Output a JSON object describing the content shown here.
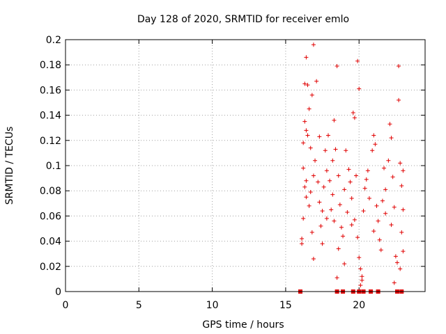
{
  "chart_data": {
    "type": "scatter",
    "title": "Day 128 of 2020, SRMTID for receiver emlo",
    "xlabel": "GPS time / hours",
    "ylabel": "SRMTID / TECUs",
    "xlim": [
      0,
      24.5
    ],
    "ylim": [
      0,
      0.2
    ],
    "x_ticks": [
      0,
      5,
      10,
      15,
      20
    ],
    "x_tick_labels": [
      "0",
      "5",
      "10",
      "15",
      "20"
    ],
    "y_ticks": [
      0,
      0.02,
      0.04,
      0.06,
      0.08,
      0.1,
      0.12,
      0.14,
      0.16,
      0.18,
      0.2
    ],
    "y_tick_labels": [
      "0",
      "0.02",
      "0.04",
      "0.06",
      "0.08",
      "0.1",
      "0.12",
      "0.14",
      "0.16",
      "0.18",
      "0.2"
    ],
    "grid": true,
    "marker": "plus",
    "series_color": "#e00000",
    "zero_points_x": [
      16.0,
      18.5,
      18.9,
      19.6,
      20.0,
      20.3,
      20.8,
      21.3,
      22.6,
      22.9
    ],
    "series": [
      {
        "name": "SRMTID",
        "points": [
          [
            16.2,
            0.098
          ],
          [
            16.3,
            0.083
          ],
          [
            16.4,
            0.075
          ],
          [
            16.3,
            0.165
          ],
          [
            16.4,
            0.186
          ],
          [
            16.5,
            0.164
          ],
          [
            16.9,
            0.196
          ],
          [
            16.6,
            0.145
          ],
          [
            16.3,
            0.135
          ],
          [
            16.4,
            0.128
          ],
          [
            16.2,
            0.118
          ],
          [
            16.5,
            0.124
          ],
          [
            16.8,
            0.156
          ],
          [
            17.1,
            0.167
          ],
          [
            16.2,
            0.058
          ],
          [
            16.1,
            0.042
          ],
          [
            16.1,
            0.038
          ],
          [
            16.4,
            0.088
          ],
          [
            16.6,
            0.068
          ],
          [
            16.7,
            0.079
          ],
          [
            16.9,
            0.092
          ],
          [
            17.0,
            0.104
          ],
          [
            17.2,
            0.087
          ],
          [
            17.3,
            0.071
          ],
          [
            17.5,
            0.064
          ],
          [
            17.4,
            0.052
          ],
          [
            16.8,
            0.047
          ],
          [
            17.6,
            0.083
          ],
          [
            17.8,
            0.096
          ],
          [
            17.7,
            0.112
          ],
          [
            17.9,
            0.124
          ],
          [
            18.0,
            0.088
          ],
          [
            18.2,
            0.077
          ],
          [
            18.1,
            0.065
          ],
          [
            18.3,
            0.056
          ],
          [
            18.4,
            0.113
          ],
          [
            18.5,
            0.179
          ],
          [
            18.3,
            0.136
          ],
          [
            18.6,
            0.092
          ],
          [
            18.7,
            0.069
          ],
          [
            18.8,
            0.051
          ],
          [
            18.9,
            0.044
          ],
          [
            18.6,
            0.034
          ],
          [
            19.0,
            0.081
          ],
          [
            19.2,
            0.063
          ],
          [
            19.3,
            0.097
          ],
          [
            19.1,
            0.112
          ],
          [
            19.5,
            0.074
          ],
          [
            19.6,
            0.142
          ],
          [
            19.7,
            0.138
          ],
          [
            19.8,
            0.092
          ],
          [
            19.9,
            0.183
          ],
          [
            20.0,
            0.161
          ],
          [
            19.7,
            0.057
          ],
          [
            19.9,
            0.043
          ],
          [
            20.0,
            0.027
          ],
          [
            20.1,
            0.018
          ],
          [
            20.2,
            0.012
          ],
          [
            20.1,
            0.005
          ],
          [
            20.2,
            0.009
          ],
          [
            20.3,
            0.064
          ],
          [
            20.4,
            0.082
          ],
          [
            20.6,
            0.096
          ],
          [
            20.7,
            0.074
          ],
          [
            20.9,
            0.112
          ],
          [
            21.0,
            0.124
          ],
          [
            21.1,
            0.117
          ],
          [
            21.2,
            0.068
          ],
          [
            21.0,
            0.048
          ],
          [
            21.3,
            0.056
          ],
          [
            21.4,
            0.041
          ],
          [
            21.5,
            0.033
          ],
          [
            21.6,
            0.072
          ],
          [
            21.8,
            0.081
          ],
          [
            22.0,
            0.104
          ],
          [
            22.1,
            0.133
          ],
          [
            22.2,
            0.122
          ],
          [
            22.3,
            0.091
          ],
          [
            22.4,
            0.067
          ],
          [
            22.2,
            0.053
          ],
          [
            22.5,
            0.028
          ],
          [
            22.6,
            0.023
          ],
          [
            22.4,
            0.007
          ],
          [
            22.7,
            0.179
          ],
          [
            22.7,
            0.152
          ],
          [
            22.8,
            0.102
          ],
          [
            22.9,
            0.084
          ],
          [
            23.0,
            0.065
          ],
          [
            22.9,
            0.047
          ],
          [
            23.0,
            0.032
          ],
          [
            22.8,
            0.018
          ],
          [
            23.0,
            0.096
          ],
          [
            16.7,
            0.114
          ],
          [
            17.3,
            0.123
          ],
          [
            18.2,
            0.104
          ],
          [
            19.4,
            0.087
          ],
          [
            20.5,
            0.089
          ],
          [
            21.7,
            0.098
          ],
          [
            16.9,
            0.026
          ],
          [
            17.5,
            0.038
          ],
          [
            18.5,
            0.011
          ],
          [
            19.0,
            0.022
          ],
          [
            17.8,
            0.058
          ],
          [
            19.5,
            0.053
          ],
          [
            21.8,
            0.062
          ]
        ]
      }
    ]
  }
}
